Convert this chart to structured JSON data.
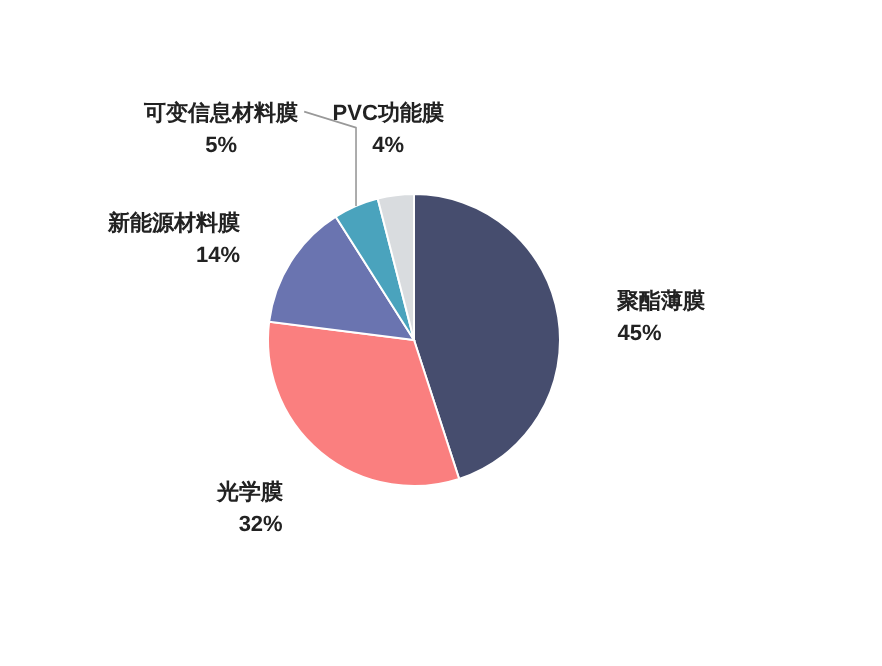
{
  "chart_data": {
    "type": "pie",
    "categories": [
      "聚酯薄膜",
      "光学膜",
      "新能源材料膜",
      "可变信息材料膜",
      "PVC功能膜"
    ],
    "values": [
      45,
      32,
      14,
      5,
      4
    ],
    "value_labels": [
      "45%",
      "32%",
      "14%",
      "5%",
      "4%"
    ],
    "colors": [
      "#464d6e",
      "#fa7f7f",
      "#6a74b0",
      "#4aa3bd",
      "#d9dcdf"
    ]
  }
}
